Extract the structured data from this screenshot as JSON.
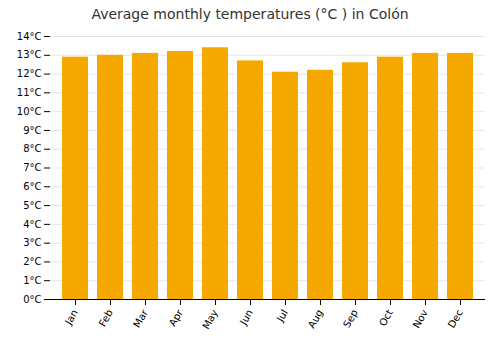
{
  "chart_data": {
    "type": "bar",
    "title": "Average monthly temperatures (°C ) in Colón",
    "categories": [
      "Jan",
      "Feb",
      "Mar",
      "Apr",
      "May",
      "Jun",
      "Jul",
      "Aug",
      "Sep",
      "Oct",
      "Nov",
      "Dec"
    ],
    "values": [
      12.9,
      13.0,
      13.1,
      13.2,
      13.4,
      12.7,
      12.1,
      12.2,
      12.6,
      12.9,
      13.1,
      13.1
    ],
    "color": "#F5A800",
    "ylim": [
      0,
      14
    ],
    "yticks": [
      {
        "value": 0,
        "label": "0°C"
      },
      {
        "value": 1,
        "label": "1°C"
      },
      {
        "value": 2,
        "label": "2°C"
      },
      {
        "value": 3,
        "label": "3°C"
      },
      {
        "value": 4,
        "label": "4°C"
      },
      {
        "value": 5,
        "label": "5°C"
      },
      {
        "value": 6,
        "label": "6°C"
      },
      {
        "value": 7,
        "label": "7°C"
      },
      {
        "value": 8,
        "label": "8°C"
      },
      {
        "value": 9,
        "label": "9°C"
      },
      {
        "value": 10,
        "label": "10°C"
      },
      {
        "value": 11,
        "label": "11°C"
      },
      {
        "value": 12,
        "label": "12°C"
      },
      {
        "value": 13,
        "label": "13°C"
      },
      {
        "value": 14,
        "label": "14°C"
      }
    ],
    "grid": true
  }
}
